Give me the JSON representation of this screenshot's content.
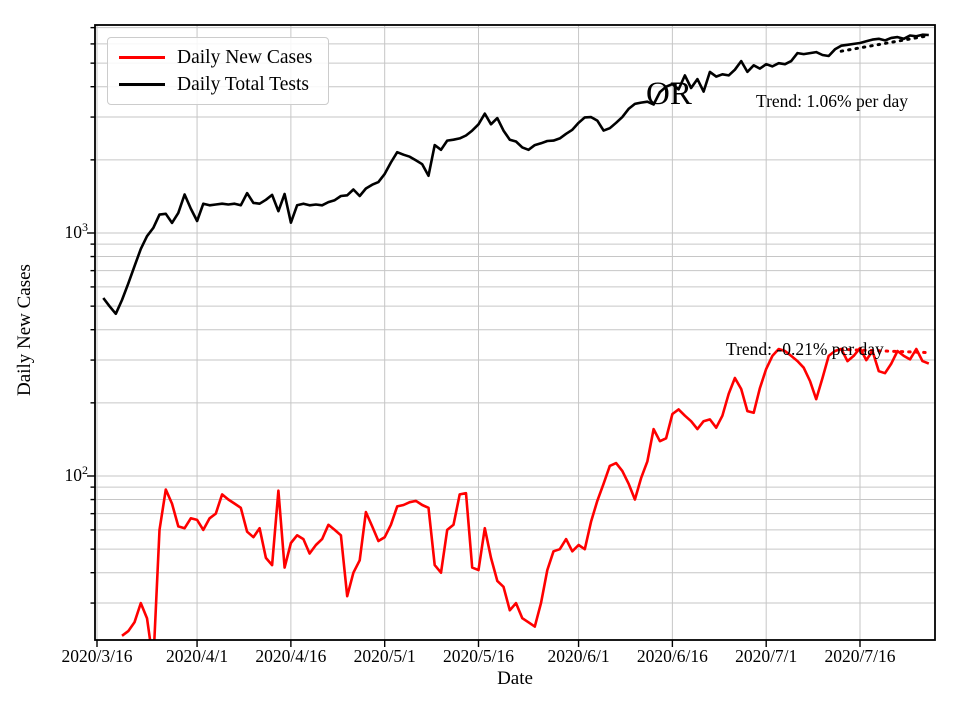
{
  "legend": {
    "items": [
      {
        "label": "Daily New Cases",
        "color": "#ff0000"
      },
      {
        "label": "Daily Total Tests",
        "color": "#000000"
      }
    ]
  },
  "chart_data": {
    "type": "line",
    "title": "",
    "xlabel": "Date",
    "ylabel": "Daily New Cases",
    "y_scale": "log",
    "ylim": [
      21,
      7650
    ],
    "xlim": [
      "2020/3/16",
      "2020/7/28"
    ],
    "grid": "on",
    "grid_color": "#c6c6c6",
    "legend_position": "upper left",
    "x_tick_labels": [
      "2020/3/16",
      "2020/4/1",
      "2020/4/16",
      "2020/5/1",
      "2020/5/16",
      "2020/6/1",
      "2020/6/16",
      "2020/7/1",
      "2020/7/16"
    ],
    "y_ticks": [
      {
        "base": "10",
        "exp": "3",
        "value": 1000
      },
      {
        "base": "10",
        "exp": "2",
        "value": 100
      }
    ],
    "annotations": [
      {
        "text": "OR"
      },
      {
        "text": "Trend: 1.06% per day"
      },
      {
        "text": "Trend: -0.21% per day"
      }
    ],
    "series": [
      {
        "name": "Daily Total Tests",
        "color": "#000000",
        "style": "solid",
        "points": [
          [
            "3/17",
            540
          ],
          [
            "3/18",
            500
          ],
          [
            "3/19",
            465
          ],
          [
            "3/20",
            530
          ],
          [
            "3/21",
            620
          ],
          [
            "3/22",
            730
          ],
          [
            "3/23",
            860
          ],
          [
            "3/24",
            970
          ],
          [
            "3/25",
            1050
          ],
          [
            "3/26",
            1190
          ],
          [
            "3/27",
            1200
          ],
          [
            "3/28",
            1100
          ],
          [
            "3/29",
            1210
          ],
          [
            "3/30",
            1440
          ],
          [
            "3/31",
            1260
          ],
          [
            "4/1",
            1120
          ],
          [
            "4/2",
            1320
          ],
          [
            "4/3",
            1300
          ],
          [
            "4/4",
            1310
          ],
          [
            "4/5",
            1320
          ],
          [
            "4/6",
            1310
          ],
          [
            "4/7",
            1320
          ],
          [
            "4/8",
            1300
          ],
          [
            "4/9",
            1460
          ],
          [
            "4/10",
            1330
          ],
          [
            "4/11",
            1320
          ],
          [
            "4/12",
            1370
          ],
          [
            "4/13",
            1435
          ],
          [
            "4/14",
            1230
          ],
          [
            "4/15",
            1447
          ],
          [
            "4/16",
            1103
          ],
          [
            "4/17",
            1300
          ],
          [
            "4/18",
            1320
          ],
          [
            "4/19",
            1300
          ],
          [
            "4/20",
            1310
          ],
          [
            "4/21",
            1300
          ],
          [
            "4/22",
            1340
          ],
          [
            "4/23",
            1365
          ],
          [
            "4/24",
            1420
          ],
          [
            "4/25",
            1430
          ],
          [
            "4/26",
            1510
          ],
          [
            "4/27",
            1420
          ],
          [
            "4/28",
            1525
          ],
          [
            "4/29",
            1580
          ],
          [
            "4/30",
            1620
          ],
          [
            "5/1",
            1750
          ],
          [
            "5/2",
            1950
          ],
          [
            "5/3",
            2150
          ],
          [
            "5/4",
            2100
          ],
          [
            "5/5",
            2060
          ],
          [
            "5/6",
            1990
          ],
          [
            "5/7",
            1920
          ],
          [
            "5/8",
            1720
          ],
          [
            "5/9",
            2300
          ],
          [
            "5/10",
            2200
          ],
          [
            "5/11",
            2400
          ],
          [
            "5/12",
            2420
          ],
          [
            "5/13",
            2450
          ],
          [
            "5/14",
            2520
          ],
          [
            "5/15",
            2640
          ],
          [
            "5/16",
            2800
          ],
          [
            "5/17",
            3100
          ],
          [
            "5/18",
            2800
          ],
          [
            "5/19",
            2970
          ],
          [
            "5/20",
            2640
          ],
          [
            "5/21",
            2420
          ],
          [
            "5/22",
            2380
          ],
          [
            "5/23",
            2250
          ],
          [
            "5/24",
            2200
          ],
          [
            "5/25",
            2300
          ],
          [
            "5/26",
            2340
          ],
          [
            "5/27",
            2390
          ],
          [
            "5/28",
            2400
          ],
          [
            "5/29",
            2450
          ],
          [
            "5/30",
            2560
          ],
          [
            "5/31",
            2660
          ],
          [
            "6/1",
            2840
          ],
          [
            "6/2",
            2990
          ],
          [
            "6/3",
            3000
          ],
          [
            "6/4",
            2900
          ],
          [
            "6/5",
            2640
          ],
          [
            "6/6",
            2700
          ],
          [
            "6/7",
            2840
          ],
          [
            "6/8",
            3000
          ],
          [
            "6/9",
            3240
          ],
          [
            "6/10",
            3400
          ],
          [
            "6/11",
            3440
          ],
          [
            "6/12",
            3470
          ],
          [
            "6/13",
            3380
          ],
          [
            "6/14",
            3800
          ],
          [
            "6/15",
            4000
          ],
          [
            "6/16",
            4100
          ],
          [
            "6/17",
            3900
          ],
          [
            "6/18",
            4450
          ],
          [
            "6/19",
            3950
          ],
          [
            "6/20",
            4300
          ],
          [
            "6/21",
            3820
          ],
          [
            "6/22",
            4600
          ],
          [
            "6/23",
            4400
          ],
          [
            "6/24",
            4500
          ],
          [
            "6/25",
            4450
          ],
          [
            "6/26",
            4700
          ],
          [
            "6/27",
            5100
          ],
          [
            "6/28",
            4600
          ],
          [
            "6/29",
            4900
          ],
          [
            "6/30",
            4750
          ],
          [
            "7/1",
            4950
          ],
          [
            "7/2",
            4850
          ],
          [
            "7/3",
            5000
          ],
          [
            "7/4",
            4950
          ],
          [
            "7/5",
            5100
          ],
          [
            "7/6",
            5500
          ],
          [
            "7/7",
            5450
          ],
          [
            "7/8",
            5500
          ],
          [
            "7/9",
            5550
          ],
          [
            "7/10",
            5400
          ],
          [
            "7/11",
            5350
          ],
          [
            "7/12",
            5700
          ],
          [
            "7/13",
            5900
          ],
          [
            "7/14",
            5950
          ],
          [
            "7/15",
            6000
          ],
          [
            "7/16",
            6050
          ],
          [
            "7/17",
            6150
          ],
          [
            "7/18",
            6250
          ],
          [
            "7/19",
            6300
          ],
          [
            "7/20",
            6200
          ],
          [
            "7/21",
            6350
          ],
          [
            "7/22",
            6400
          ],
          [
            "7/23",
            6300
          ],
          [
            "7/24",
            6500
          ],
          [
            "7/25",
            6450
          ],
          [
            "7/26",
            6550
          ],
          [
            "7/27",
            6530
          ]
        ]
      },
      {
        "name": "Daily New Cases",
        "color": "#ff0000",
        "style": "solid",
        "points": [
          [
            "3/20",
            22
          ],
          [
            "3/21",
            23
          ],
          [
            "3/22",
            25
          ],
          [
            "3/23",
            30
          ],
          [
            "3/24",
            26
          ],
          [
            "3/25",
            17
          ],
          [
            "3/26",
            60
          ],
          [
            "3/27",
            88
          ],
          [
            "3/28",
            77
          ],
          [
            "3/29",
            62
          ],
          [
            "3/30",
            61
          ],
          [
            "3/31",
            67
          ],
          [
            "4/1",
            66
          ],
          [
            "4/2",
            60
          ],
          [
            "4/3",
            67
          ],
          [
            "4/4",
            70
          ],
          [
            "4/5",
            84
          ],
          [
            "4/6",
            80
          ],
          [
            "4/7",
            77
          ],
          [
            "4/8",
            74
          ],
          [
            "4/9",
            59
          ],
          [
            "4/10",
            56
          ],
          [
            "4/11",
            61
          ],
          [
            "4/12",
            46
          ],
          [
            "4/13",
            43
          ],
          [
            "4/14",
            87
          ],
          [
            "4/15",
            42
          ],
          [
            "4/16",
            53
          ],
          [
            "4/17",
            57
          ],
          [
            "4/18",
            55
          ],
          [
            "4/19",
            48
          ],
          [
            "4/20",
            52
          ],
          [
            "4/21",
            55
          ],
          [
            "4/22",
            63
          ],
          [
            "4/23",
            60
          ],
          [
            "4/24",
            57
          ],
          [
            "4/25",
            32
          ],
          [
            "4/26",
            40
          ],
          [
            "4/27",
            45
          ],
          [
            "4/28",
            71
          ],
          [
            "4/29",
            62
          ],
          [
            "4/30",
            54
          ],
          [
            "5/1",
            56
          ],
          [
            "5/2",
            63
          ],
          [
            "5/3",
            75
          ],
          [
            "5/4",
            76
          ],
          [
            "5/5",
            78
          ],
          [
            "5/6",
            79
          ],
          [
            "5/7",
            76
          ],
          [
            "5/8",
            74
          ],
          [
            "5/9",
            43
          ],
          [
            "5/10",
            40
          ],
          [
            "5/11",
            60
          ],
          [
            "5/12",
            63
          ],
          [
            "5/13",
            84
          ],
          [
            "5/14",
            85
          ],
          [
            "5/15",
            42
          ],
          [
            "5/16",
            41
          ],
          [
            "5/17",
            61
          ],
          [
            "5/18",
            46
          ],
          [
            "5/19",
            37
          ],
          [
            "5/20",
            35
          ],
          [
            "5/21",
            28
          ],
          [
            "5/22",
            30
          ],
          [
            "5/23",
            26
          ],
          [
            "5/24",
            25
          ],
          [
            "5/25",
            24
          ],
          [
            "5/26",
            30
          ],
          [
            "5/27",
            41
          ],
          [
            "5/28",
            49
          ],
          [
            "5/29",
            50
          ],
          [
            "5/30",
            55
          ],
          [
            "5/31",
            49
          ],
          [
            "6/1",
            52
          ],
          [
            "6/2",
            50
          ],
          [
            "6/3",
            65
          ],
          [
            "6/4",
            79
          ],
          [
            "6/5",
            93
          ],
          [
            "6/6",
            110
          ],
          [
            "6/7",
            113
          ],
          [
            "6/8",
            105
          ],
          [
            "6/9",
            93
          ],
          [
            "6/10",
            80
          ],
          [
            "6/11",
            98
          ],
          [
            "6/12",
            115
          ],
          [
            "6/13",
            156
          ],
          [
            "6/14",
            139
          ],
          [
            "6/15",
            143
          ],
          [
            "6/16",
            180
          ],
          [
            "6/17",
            188
          ],
          [
            "6/18",
            177
          ],
          [
            "6/19",
            168
          ],
          [
            "6/20",
            156
          ],
          [
            "6/21",
            168
          ],
          [
            "6/22",
            171
          ],
          [
            "6/23",
            158
          ],
          [
            "6/24",
            177
          ],
          [
            "6/25",
            218
          ],
          [
            "6/26",
            253
          ],
          [
            "6/27",
            228
          ],
          [
            "6/28",
            185
          ],
          [
            "6/29",
            182
          ],
          [
            "6/30",
            230
          ],
          [
            "7/1",
            276
          ],
          [
            "7/2",
            312
          ],
          [
            "7/3",
            333
          ],
          [
            "7/4",
            327
          ],
          [
            "7/5",
            312
          ],
          [
            "7/6",
            297
          ],
          [
            "7/7",
            279
          ],
          [
            "7/8",
            246
          ],
          [
            "7/9",
            207
          ],
          [
            "7/10",
            253
          ],
          [
            "7/11",
            312
          ],
          [
            "7/12",
            327
          ],
          [
            "7/13",
            333
          ],
          [
            "7/14",
            297
          ],
          [
            "7/15",
            312
          ],
          [
            "7/16",
            336
          ],
          [
            "7/17",
            300
          ],
          [
            "7/18",
            327
          ],
          [
            "7/19",
            270
          ],
          [
            "7/20",
            265
          ],
          [
            "7/21",
            290
          ],
          [
            "7/22",
            327
          ],
          [
            "7/23",
            312
          ],
          [
            "7/24",
            302
          ],
          [
            "7/25",
            333
          ],
          [
            "7/26",
            297
          ],
          [
            "7/27",
            290
          ]
        ]
      },
      {
        "name": "Tests Trend 1.06% per day",
        "color": "#000000",
        "style": "dotted",
        "points": [
          [
            "7/13",
            5600
          ],
          [
            "7/27",
            6490
          ]
        ]
      },
      {
        "name": "Cases Trend -0.21% per day",
        "color": "#ff0000",
        "style": "dotted",
        "points": [
          [
            "7/13",
            332
          ],
          [
            "7/27",
            322
          ]
        ]
      }
    ]
  }
}
